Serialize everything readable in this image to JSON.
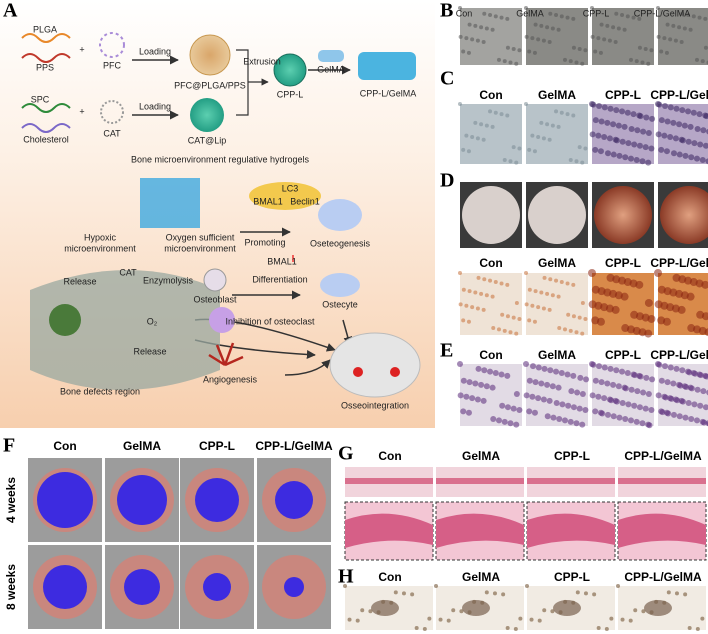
{
  "panel_a": {
    "label": "A",
    "plga": "PLGA",
    "pps": "PPS",
    "pfc": "PFC",
    "plus_1": "+",
    "loading_1": "Loading",
    "pfc_plga_pps": "PFC@PLGA/PPS",
    "extrusion": "Extrusion",
    "cpp_l": "CPP-L",
    "gelma": "GelMA",
    "cpp_l_gelma": "CPP-L/GelMA",
    "spc": "SPC",
    "cholesterol": "Cholesterol",
    "plus_2": "+",
    "cat": "CAT",
    "loading_2": "Loading",
    "cat_lip": "CAT@Lip",
    "hydrogel_title": "Bone microenvironment regulative hydrogels",
    "lc3": "LC3",
    "bmal1": "BMAL1",
    "beclin1": "Beclin1",
    "promoting": "Promoting",
    "hypoxic": [
      "Hypoxic",
      "microenvironment"
    ],
    "oxygen": [
      "Oxygen sufficient",
      "microenvironment"
    ],
    "osteogenesis": "Oseteogenesis",
    "release_1": "Release",
    "cat_2": "CAT",
    "enzymolysis": "Enzymolysis",
    "o2": "O₂",
    "release_2": "Release",
    "bone_defects": "Bone defects region",
    "osteoblast": "Osteoblast",
    "bmal1_2": "BMAL1",
    "differentiation": "Differentiation",
    "ostecyte": "Ostecyte",
    "osteoclast": "Inhibition of osteoclast",
    "angiogenesis": "Angiogenesis",
    "osseointegration": "Osseointegration"
  },
  "panel_b": {
    "label": "B",
    "columns": [
      "Con",
      "GelMA",
      "CPP-L",
      "CPP-L/GelMA"
    ]
  },
  "panel_c": {
    "label": "C",
    "columns": [
      "Con",
      "GelMA",
      "CPP-L",
      "CPP-L/GelMA"
    ]
  },
  "panel_d": {
    "label": "D",
    "columns": [
      "Con",
      "GelMA",
      "CPP-L",
      "CPP-L/GelMA"
    ]
  },
  "panel_e": {
    "label": "E",
    "columns": [
      "Con",
      "GelMA",
      "CPP-L",
      "CPP-L/GelMA"
    ]
  },
  "panel_f": {
    "label": "F",
    "columns": [
      "Con",
      "GelMA",
      "CPP-L",
      "CPP-L/GelMA"
    ],
    "rows": [
      "4 weeks",
      "8 weeks"
    ]
  },
  "panel_g": {
    "label": "G",
    "columns": [
      "Con",
      "GelMA",
      "CPP-L",
      "CPP-L/GelMA"
    ]
  },
  "panel_h": {
    "label": "H",
    "columns": [
      "Con",
      "GelMA",
      "CPP-L",
      "CPP-L/GelMA"
    ]
  }
}
